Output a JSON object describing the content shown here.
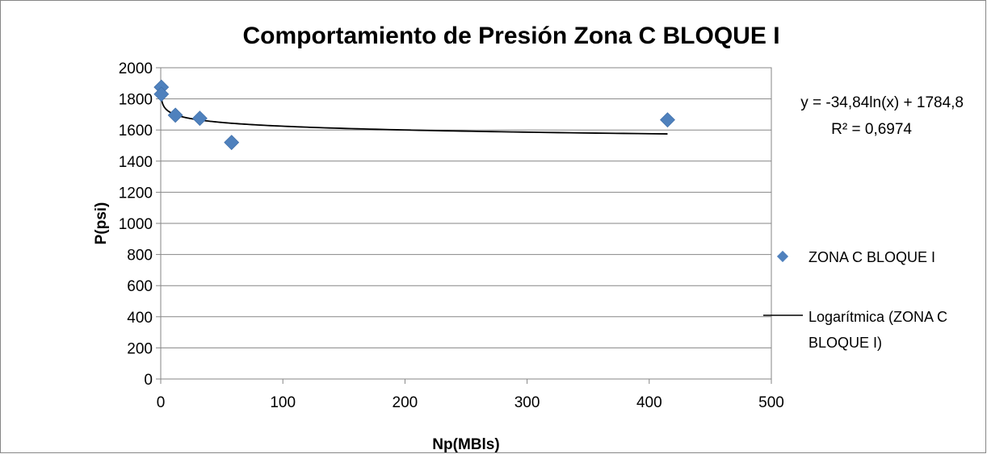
{
  "chart_data": {
    "type": "scatter",
    "title": "Comportamiento de Presión Zona C BLOQUE I",
    "xlabel": "Np(MBls)",
    "ylabel": "P(psi)",
    "xlim": [
      0,
      500
    ],
    "ylim": [
      0,
      2000
    ],
    "x_ticks": [
      "0",
      "100",
      "200",
      "300",
      "400",
      "500"
    ],
    "y_ticks": [
      "0",
      "200",
      "400",
      "600",
      "800",
      "1000",
      "1200",
      "1400",
      "1600",
      "1800",
      "2000"
    ],
    "grid": "horizontal",
    "legend_position": "right",
    "series": [
      {
        "name": "ZONA C BLOQUE I",
        "marker": "diamond",
        "color": "#4f81bd",
        "points": [
          {
            "x": 0.5,
            "y": 1875
          },
          {
            "x": 0.5,
            "y": 1830
          },
          {
            "x": 12,
            "y": 1695
          },
          {
            "x": 32,
            "y": 1675
          },
          {
            "x": 58,
            "y": 1520
          },
          {
            "x": 415,
            "y": 1665
          }
        ]
      }
    ],
    "trendline": {
      "name": "Logarítmica (ZONA C BLOQUE I)",
      "type": "logarithmic",
      "color": "#000000",
      "a": -34.84,
      "b": 1784.8,
      "x_range": [
        0.5,
        415
      ],
      "equation": "y = -34,84ln(x) + 1784,8",
      "r2": "R² = 0,6974"
    },
    "legend": {
      "series_label": "ZONA C BLOQUE I",
      "trend_label_line1": "Logarítmica (ZONA C",
      "trend_label_line2": "BLOQUE I)"
    }
  }
}
